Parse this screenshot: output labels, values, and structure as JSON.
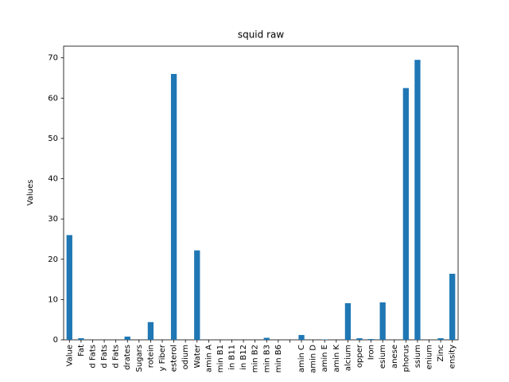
{
  "chart_data": {
    "type": "bar",
    "title": "squid raw",
    "ylabel": "Values",
    "categories": [
      "Value",
      "Fat",
      "d Fats",
      "d Fats",
      "d Fats",
      "drates",
      "Sugars",
      "rotein",
      "y Fiber",
      "esterol",
      "odium",
      "Water",
      "amin A",
      "min B1",
      "in B11",
      "in B12",
      "min B2",
      "min B3",
      "min B6",
      null,
      "amin C",
      "amin D",
      "amin E",
      "amin K",
      "alcium",
      "opper",
      "Iron",
      "esium",
      "anese",
      "phorus",
      "ssium",
      "enium",
      "Zinc",
      "ensity"
    ],
    "values": [
      26,
      0.4,
      0,
      0,
      0,
      0.8,
      0,
      4.4,
      0,
      66,
      0,
      22.2,
      0,
      0,
      0,
      0,
      0,
      0.5,
      0,
      0,
      1.2,
      0,
      0.1,
      0,
      9.1,
      0.4,
      0.2,
      9.3,
      0,
      62.5,
      69.5,
      0,
      0.4,
      16.4
    ],
    "color": "#1f77b4",
    "ylim": [
      0,
      72.9
    ],
    "yticks": [
      0,
      10,
      20,
      30,
      40,
      50,
      60,
      70
    ]
  }
}
